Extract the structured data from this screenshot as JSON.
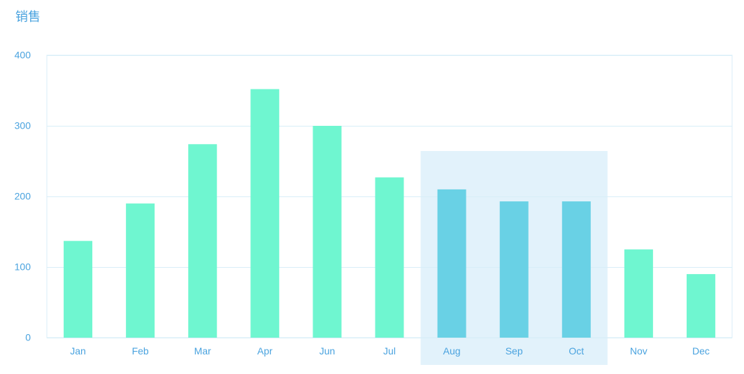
{
  "chart_data": {
    "type": "bar",
    "title": "销售",
    "categories": [
      "Jan",
      "Feb",
      "Mar",
      "Apr",
      "Jun",
      "Jul",
      "Aug",
      "Sep",
      "Oct",
      "Nov",
      "Dec"
    ],
    "values": [
      137,
      190,
      274,
      352,
      300,
      227,
      210,
      193,
      193,
      125,
      90
    ],
    "ylim": [
      0,
      400
    ],
    "yticks": [
      "0",
      "100",
      "200",
      "300",
      "400"
    ],
    "grid": true,
    "highlighted_categories": [
      "Aug",
      "Sep",
      "Oct"
    ],
    "colors": {
      "bar": "#6ff6d0",
      "bar_highlight": "#69d1e5",
      "highlight_band": "#e2f2fb",
      "axis_text": "#4aa3df",
      "grid": "#d8eef8",
      "title": "#4aa3df"
    }
  }
}
